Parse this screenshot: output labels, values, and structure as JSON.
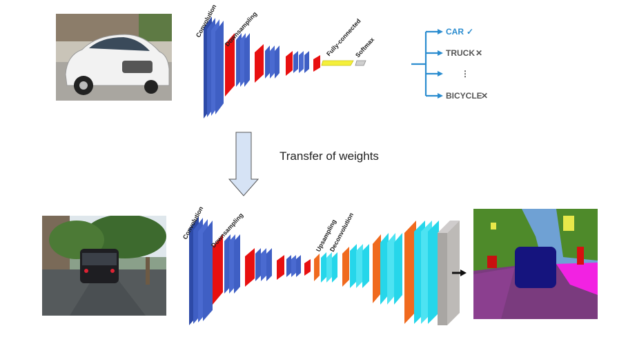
{
  "classification_network": {
    "layer_labels": {
      "convolution": "Convolution",
      "downsampling": "Downsampling",
      "fully_connected": "Fully-connected",
      "softmax": "Softmax"
    },
    "outputs": [
      {
        "label": "CAR",
        "mark": "✓",
        "mark_icon": "check-icon"
      },
      {
        "label": "TRUCK",
        "mark": "✕",
        "mark_icon": "cross-icon"
      },
      {
        "label": "⋮",
        "mark": "",
        "mark_icon": ""
      },
      {
        "label": "BICYCLE",
        "mark": "✕",
        "mark_icon": "cross-icon"
      }
    ]
  },
  "transfer": {
    "label": "Transfer of weights",
    "arrow_icon": "down-arrow-icon"
  },
  "segmentation_network": {
    "layer_labels": {
      "convolution": "Convolution",
      "downsampling": "Downsampling",
      "upsampling": "Upsampling",
      "deconvolution": "Deconvolution"
    },
    "output_arrow_icon": "right-arrow-icon"
  },
  "colors": {
    "conv_blue": "#3f5fc4",
    "downsample_red": "#e81010",
    "upsample_orange": "#f06a1e",
    "deconv_cyan": "#26d6ea",
    "fc_yellow": "#f4ef3a",
    "classifier_blue": "#2a8ccf",
    "output_gray": "#a9a6a3"
  }
}
